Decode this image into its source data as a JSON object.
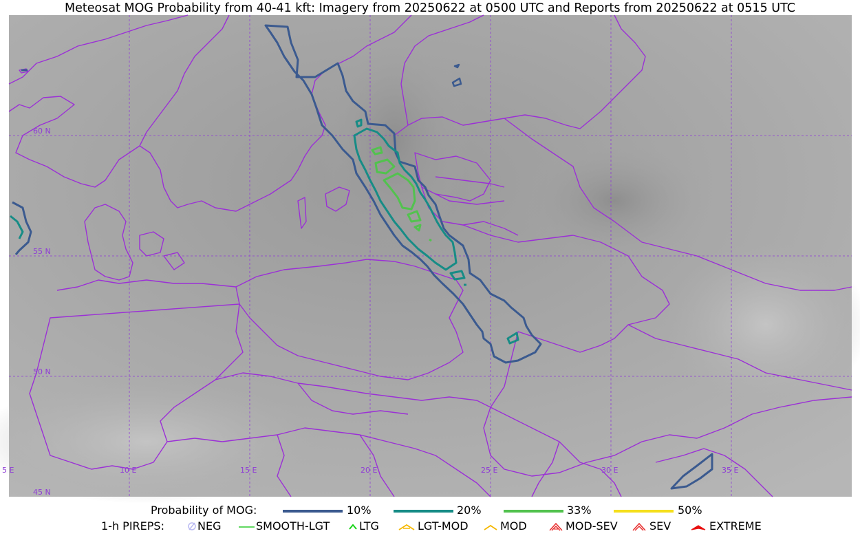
{
  "title": "Meteosat MOG Probability from 40-41 kft: Imagery from 20250622 at 0500 UTC and Reports from 20250622 at 0515 UTC",
  "map": {
    "lat_labels": [
      "60 N",
      "55 N",
      "50 N",
      "45 N"
    ],
    "lon_labels": [
      "5 E",
      "10 E",
      "15 E",
      "20 E",
      "25 E",
      "30 E",
      "35 E"
    ],
    "colors": {
      "background": "#a9a9a9",
      "borders": "#9b30d6",
      "grid": "#8e3bd6",
      "contour_10": "#3b5a8f",
      "contour_20": "#178c86",
      "contour_33": "#52c24e",
      "contour_50": "#f5df1c"
    }
  },
  "legend": {
    "probability_label": "Probability of MOG:",
    "levels": [
      {
        "label": "10%",
        "color": "#3b5a8f"
      },
      {
        "label": "20%",
        "color": "#178c86"
      },
      {
        "label": "33%",
        "color": "#52c24e"
      },
      {
        "label": "50%",
        "color": "#f5df1c"
      }
    ],
    "pireps_label": "1-h PIREPS:",
    "pireps": [
      {
        "label": "NEG",
        "icon": "neg-circle-icon",
        "color": "#b9b9f2"
      },
      {
        "label": "SMOOTH-LGT",
        "icon": "smooth-line-icon",
        "color": "#2ecc2e"
      },
      {
        "label": "LTG",
        "icon": "chevron-icon",
        "color": "#19d419"
      },
      {
        "label": "LGT-MOD",
        "icon": "caret-bar-icon",
        "color": "#f5b800"
      },
      {
        "label": "MOD",
        "icon": "caret-icon",
        "color": "#f5b800"
      },
      {
        "label": "MOD-SEV",
        "icon": "double-caret-bar-icon",
        "color": "#e83030"
      },
      {
        "label": "SEV",
        "icon": "double-caret-icon",
        "color": "#e83030"
      },
      {
        "label": "EXTREME",
        "icon": "filled-caret-icon",
        "color": "#e81010"
      }
    ]
  }
}
